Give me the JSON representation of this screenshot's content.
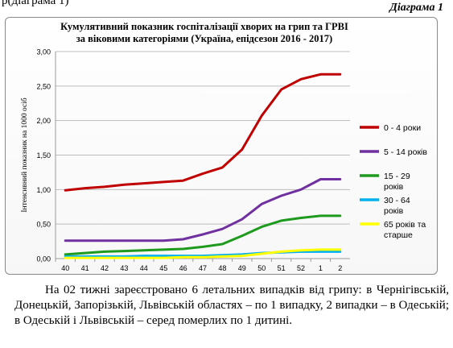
{
  "page": {
    "top_fragment": "р(діаграма 1)",
    "diagram_label": "Діаграма 1",
    "caption": "На 02 тижні зареєстровано 6 летальних випадків від грипу: в Чернігівській, Донецькій, Запорізькій,  Львівській областях – по 1 випадку, 2 випадки – в Одеській; в Одеській і Львівській – серед померлих по 1 дитині."
  },
  "chart_data": {
    "type": "line",
    "title_line1": "Кумулятивний показник госпіталізації хворих на грип та ГРВІ",
    "title_line2": "за віковими категоріями  (Україна, епідсезон 2016 - 2017)",
    "ylabel": "Інтенсивний показник на 1000  осіб",
    "xlabel": "",
    "ylim": [
      0,
      3
    ],
    "y_ticks": [
      "0,00",
      "0,50",
      "1,00",
      "1,50",
      "2,00",
      "2,50",
      "3,00"
    ],
    "categories": [
      "40",
      "41",
      "42",
      "43",
      "44",
      "45",
      "46",
      "47",
      "48",
      "49",
      "50",
      "51",
      "52",
      "1",
      "2"
    ],
    "grid": "horizontal",
    "legend_position": "right",
    "series": [
      {
        "name": "0 - 4 роки",
        "color": "#c00000",
        "values": [
          0.99,
          1.02,
          1.04,
          1.07,
          1.09,
          1.11,
          1.13,
          1.23,
          1.32,
          1.58,
          2.07,
          2.45,
          2.6,
          2.67,
          2.67
        ]
      },
      {
        "name": "5 - 14 років",
        "color": "#7030a0",
        "values": [
          0.26,
          0.26,
          0.26,
          0.26,
          0.26,
          0.26,
          0.28,
          0.35,
          0.43,
          0.57,
          0.79,
          0.91,
          1.0,
          1.15,
          1.15
        ]
      },
      {
        "name": "15 - 29 років",
        "color": "#1e9b1e",
        "values": [
          0.06,
          0.08,
          0.1,
          0.11,
          0.12,
          0.13,
          0.14,
          0.17,
          0.21,
          0.33,
          0.46,
          0.55,
          0.59,
          0.62,
          0.62
        ]
      },
      {
        "name": "30 - 64 років",
        "color": "#00b0f0",
        "values": [
          0.03,
          0.03,
          0.03,
          0.03,
          0.04,
          0.04,
          0.04,
          0.04,
          0.05,
          0.06,
          0.08,
          0.09,
          0.1,
          0.1,
          0.1
        ]
      },
      {
        "name": "65 років та старше",
        "color": "#ffff00",
        "values": [
          0.01,
          0.01,
          0.01,
          0.01,
          0.01,
          0.01,
          0.02,
          0.02,
          0.03,
          0.04,
          0.07,
          0.1,
          0.12,
          0.13,
          0.13
        ]
      }
    ],
    "legend_lines": [
      [
        "0 - 4 роки"
      ],
      [
        "5 - 14 років"
      ],
      [
        "15 - 29",
        "років"
      ],
      [
        "30 - 64",
        "років"
      ],
      [
        "65 років та",
        "старше"
      ]
    ]
  }
}
